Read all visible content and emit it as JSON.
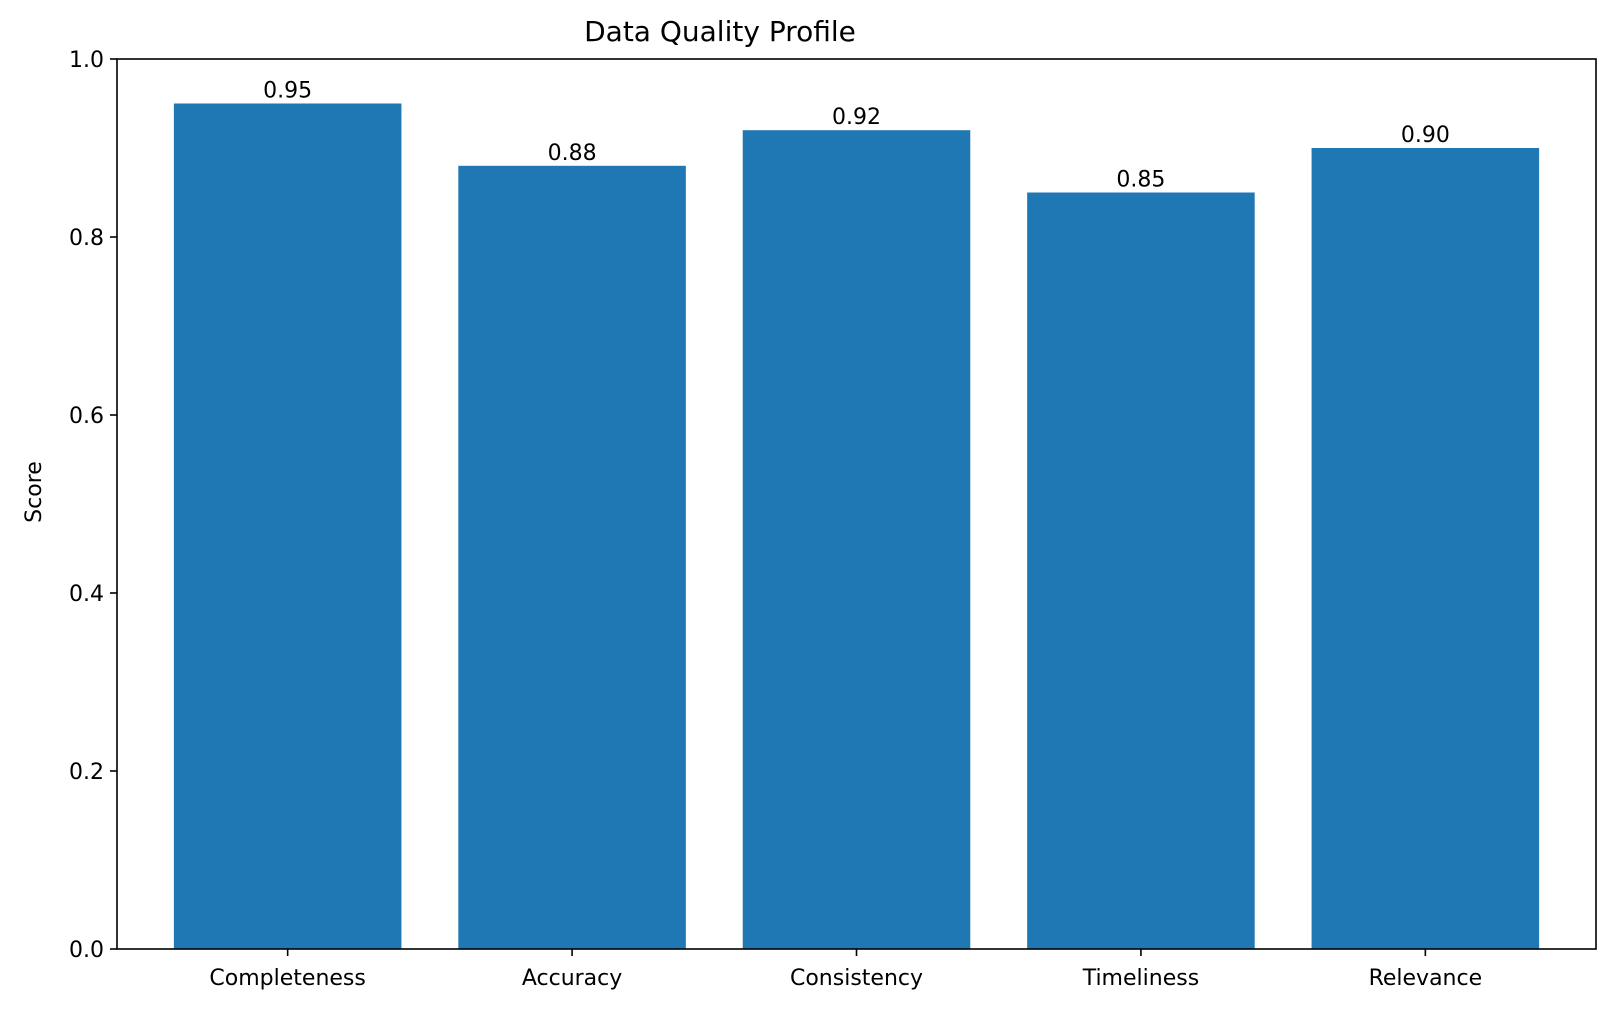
{
  "chart_data": {
    "type": "bar",
    "title": "Data Quality Profile",
    "xlabel": "",
    "ylabel": "Score",
    "categories": [
      "Completeness",
      "Accuracy",
      "Consistency",
      "Timeliness",
      "Relevance"
    ],
    "values": [
      0.95,
      0.88,
      0.92,
      0.85,
      0.9
    ],
    "data_labels": [
      "0.95",
      "0.88",
      "0.92",
      "0.85",
      "0.90"
    ],
    "ylim": [
      0,
      1.0
    ],
    "yticks": [
      0.0,
      0.2,
      0.4,
      0.6,
      0.8,
      1.0
    ],
    "ytick_labels": [
      "0.0",
      "0.2",
      "0.4",
      "0.6",
      "0.8",
      "1.0"
    ],
    "grid": false,
    "legend": "none",
    "bar_color": "#1f77b4"
  }
}
